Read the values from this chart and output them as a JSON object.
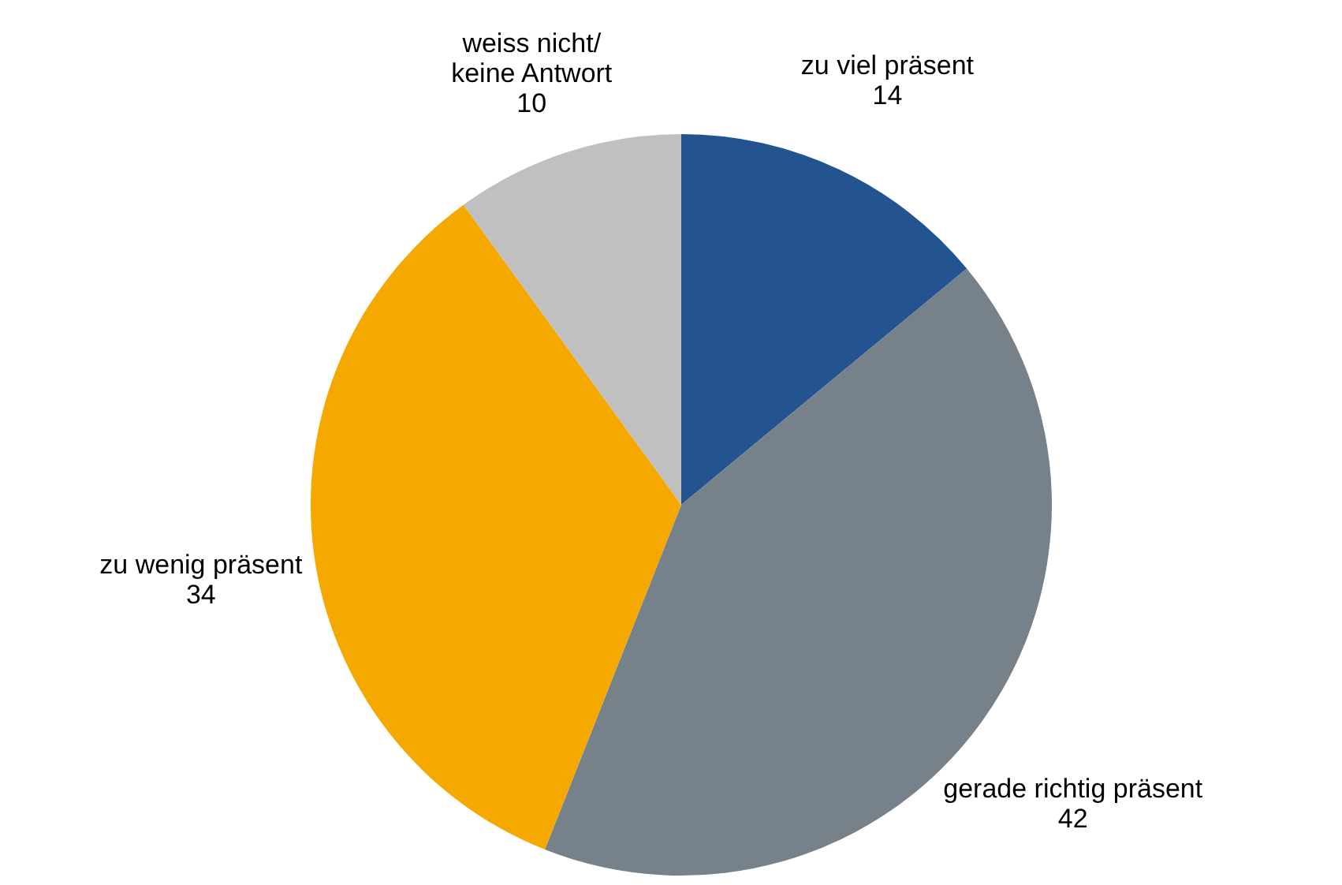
{
  "chart_data": {
    "type": "pie",
    "categories": [
      "zu viel präsent",
      "gerade richtig präsent",
      "zu wenig präsent",
      "weiss nicht/\nkeine Antwort"
    ],
    "values": [
      14,
      42,
      34,
      10
    ],
    "colors": [
      "#23548f",
      "#76818a",
      "#f5a800",
      "#c0c0c0"
    ],
    "data_labels": true
  }
}
